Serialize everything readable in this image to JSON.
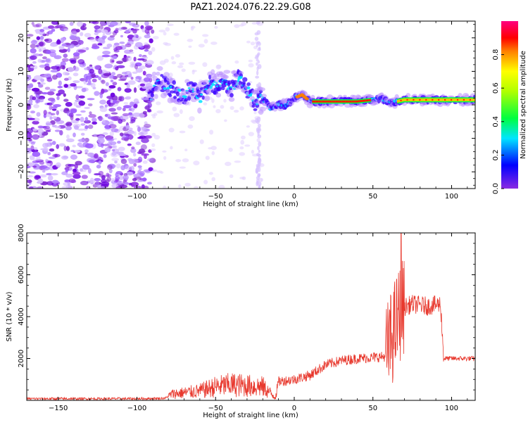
{
  "title": "PAZ1.2024.076.22.29.G08",
  "chart_data": [
    {
      "type": "heatmap",
      "xlabel": "Height of straight line (km)",
      "ylabel": "Frequency (Hz)",
      "xlim": [
        -170,
        115
      ],
      "ylim": [
        -25,
        25
      ],
      "xticks": [
        -150,
        -100,
        -50,
        0,
        50,
        100
      ],
      "yticks": [
        -20,
        -10,
        0,
        10,
        20
      ],
      "colorbar": {
        "label": "Normalized spectral amplitude",
        "ticks": [
          0.0,
          0.2,
          0.4,
          0.6,
          0.8
        ],
        "range": [
          0,
          1
        ],
        "colormap": "gist_rainbow_r",
        "colors": [
          "#8a2be2",
          "#0000ff",
          "#00e5ff",
          "#00ff00",
          "#ffff00",
          "#ff8000",
          "#ff0000",
          "#ff0080"
        ]
      },
      "ridge_track": [
        {
          "x": -90,
          "y": 6
        },
        {
          "x": -85,
          "y": 7
        },
        {
          "x": -80,
          "y": 5
        },
        {
          "x": -75,
          "y": 4
        },
        {
          "x": -70,
          "y": 3
        },
        {
          "x": -65,
          "y": 5
        },
        {
          "x": -60,
          "y": 2
        },
        {
          "x": -55,
          "y": 6
        },
        {
          "x": -50,
          "y": 6
        },
        {
          "x": -45,
          "y": 7
        },
        {
          "x": -40,
          "y": 5
        },
        {
          "x": -35,
          "y": 8
        },
        {
          "x": -30,
          "y": 5
        },
        {
          "x": -25,
          "y": 1
        },
        {
          "x": -20,
          "y": 2
        },
        {
          "x": -15,
          "y": -1
        },
        {
          "x": -10,
          "y": 0
        },
        {
          "x": -5,
          "y": 0
        },
        {
          "x": 0,
          "y": 2
        },
        {
          "x": 5,
          "y": 3
        },
        {
          "x": 10,
          "y": 1
        },
        {
          "x": 20,
          "y": 1
        },
        {
          "x": 30,
          "y": 1
        },
        {
          "x": 40,
          "y": 1
        },
        {
          "x": 50,
          "y": 1.5
        },
        {
          "x": 55,
          "y": 2
        },
        {
          "x": 60,
          "y": 0.5
        },
        {
          "x": 65,
          "y": 1
        },
        {
          "x": 70,
          "y": 1.5
        },
        {
          "x": 80,
          "y": 1.5
        },
        {
          "x": 90,
          "y": 1.5
        },
        {
          "x": 100,
          "y": 1.5
        },
        {
          "x": 110,
          "y": 1.5
        }
      ]
    },
    {
      "type": "line",
      "xlabel": "Height of straight line (km)",
      "ylabel": "SNR (10 * v/v)",
      "xlim": [
        -170,
        115
      ],
      "ylim": [
        0,
        8000
      ],
      "xticks": [
        -150,
        -100,
        -50,
        0,
        50,
        100
      ],
      "yticks": [
        2000,
        4000,
        6000,
        8000
      ],
      "color": "#e8392e",
      "envelope": [
        {
          "x": -170,
          "y": 80
        },
        {
          "x": -100,
          "y": 80
        },
        {
          "x": -82,
          "y": 100
        },
        {
          "x": -78,
          "y": 300
        },
        {
          "x": -60,
          "y": 450
        },
        {
          "x": -50,
          "y": 650
        },
        {
          "x": -40,
          "y": 750
        },
        {
          "x": -30,
          "y": 700
        },
        {
          "x": -20,
          "y": 650
        },
        {
          "x": -12,
          "y": 150
        },
        {
          "x": -10,
          "y": 900
        },
        {
          "x": 0,
          "y": 1000
        },
        {
          "x": 10,
          "y": 1200
        },
        {
          "x": 20,
          "y": 1700
        },
        {
          "x": 30,
          "y": 1900
        },
        {
          "x": 40,
          "y": 2000
        },
        {
          "x": 50,
          "y": 2050
        },
        {
          "x": 58,
          "y": 2100
        },
        {
          "x": 62,
          "y": 3000
        },
        {
          "x": 68,
          "y": 4400
        },
        {
          "x": 75,
          "y": 4600
        },
        {
          "x": 85,
          "y": 4500
        },
        {
          "x": 93,
          "y": 4600
        },
        {
          "x": 95,
          "y": 2000
        },
        {
          "x": 115,
          "y": 2000
        }
      ],
      "peak": {
        "x": 68,
        "y": 8000
      }
    }
  ]
}
